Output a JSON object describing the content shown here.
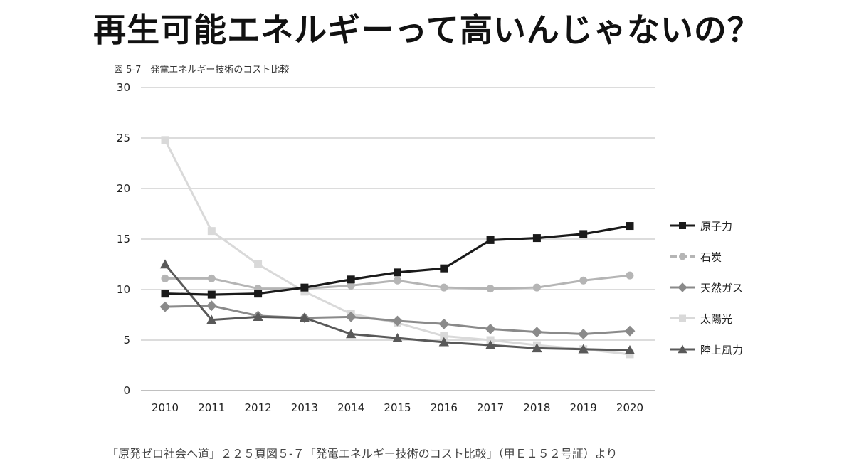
{
  "header": {
    "title": "再生可能エネルギーって高いんじゃないの？"
  },
  "figure": {
    "caption": "図 5-7　発電エネルギー技術のコスト比較",
    "source": "「原発ゼロ社会へ道」２２５頁図５-７「発電エネルギー技術のコスト比較」（甲Ｅ１５２号証）より"
  },
  "chart_data": {
    "type": "line",
    "title": "発電エネルギー技術のコスト比較",
    "categories": [
      "2010",
      "2011",
      "2012",
      "2013",
      "2014",
      "2015",
      "2016",
      "2017",
      "2018",
      "2019",
      "2020"
    ],
    "ylim": [
      0,
      30
    ],
    "yticks": [
      0,
      5,
      10,
      15,
      20,
      25,
      30
    ],
    "grid": true,
    "legend_position": "right",
    "series": [
      {
        "name": "原子力",
        "color": "#1a1a1a",
        "marker": "square",
        "dashed": false,
        "values": [
          9.6,
          9.5,
          9.6,
          10.2,
          11.0,
          11.7,
          12.1,
          14.9,
          15.1,
          15.5,
          16.3
        ]
      },
      {
        "name": "石炭",
        "color": "#b5b5b5",
        "marker": "circle",
        "dashed": true,
        "values": [
          11.1,
          11.1,
          10.1,
          10.1,
          10.4,
          10.9,
          10.2,
          10.1,
          10.2,
          10.9,
          11.4
        ]
      },
      {
        "name": "天然ガス",
        "color": "#8a8a8a",
        "marker": "diamond",
        "dashed": false,
        "values": [
          8.3,
          8.4,
          7.4,
          7.2,
          7.3,
          6.9,
          6.6,
          6.1,
          5.8,
          5.6,
          5.9
        ]
      },
      {
        "name": "太陽光",
        "color": "#d9d9d9",
        "marker": "square",
        "dashed": false,
        "values": [
          24.8,
          15.8,
          12.5,
          9.8,
          7.6,
          6.7,
          5.4,
          5.0,
          4.5,
          4.1,
          3.6
        ]
      },
      {
        "name": "陸上風力",
        "color": "#595959",
        "marker": "triangle",
        "dashed": false,
        "values": [
          12.5,
          7.0,
          7.3,
          7.2,
          5.6,
          5.2,
          4.8,
          4.5,
          4.2,
          4.1,
          4.0
        ]
      }
    ]
  }
}
